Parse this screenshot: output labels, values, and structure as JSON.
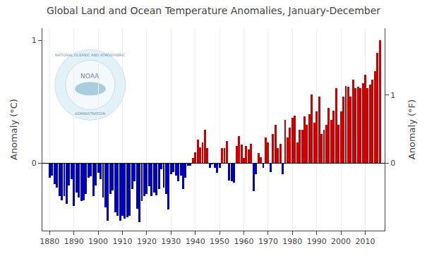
{
  "chart_data": {
    "type": "bar",
    "title": "Global Land and Ocean Temperature Anomalies, January-December",
    "ylabel": "Anomaly (°C)",
    "y2label": "Anomaly (°F)",
    "x": [
      1880,
      1881,
      1882,
      1883,
      1884,
      1885,
      1886,
      1887,
      1888,
      1889,
      1890,
      1891,
      1892,
      1893,
      1894,
      1895,
      1896,
      1897,
      1898,
      1899,
      1900,
      1901,
      1902,
      1903,
      1904,
      1905,
      1906,
      1907,
      1908,
      1909,
      1910,
      1911,
      1912,
      1913,
      1914,
      1915,
      1916,
      1917,
      1918,
      1919,
      1920,
      1921,
      1922,
      1923,
      1924,
      1925,
      1926,
      1927,
      1928,
      1929,
      1930,
      1931,
      1932,
      1933,
      1934,
      1935,
      1936,
      1937,
      1938,
      1939,
      1940,
      1941,
      1942,
      1943,
      1944,
      1945,
      1946,
      1947,
      1948,
      1949,
      1950,
      1951,
      1952,
      1953,
      1954,
      1955,
      1956,
      1957,
      1958,
      1959,
      1960,
      1961,
      1962,
      1963,
      1964,
      1965,
      1966,
      1967,
      1968,
      1969,
      1970,
      1971,
      1972,
      1973,
      1974,
      1975,
      1976,
      1977,
      1978,
      1979,
      1980,
      1981,
      1982,
      1983,
      1984,
      1985,
      1986,
      1987,
      1988,
      1989,
      1990,
      1991,
      1992,
      1993,
      1994,
      1995,
      1996,
      1997,
      1998,
      1999,
      2000,
      2001,
      2002,
      2003,
      2004,
      2005,
      2006,
      2007,
      2008,
      2009,
      2010,
      2011,
      2012,
      2013,
      2014,
      2015,
      2016
    ],
    "values": [
      -0.12,
      -0.1,
      -0.17,
      -0.2,
      -0.27,
      -0.3,
      -0.27,
      -0.33,
      -0.18,
      -0.13,
      -0.35,
      -0.24,
      -0.28,
      -0.31,
      -0.3,
      -0.25,
      -0.12,
      -0.11,
      -0.27,
      -0.18,
      -0.08,
      -0.13,
      -0.28,
      -0.36,
      -0.47,
      -0.25,
      -0.22,
      -0.4,
      -0.43,
      -0.47,
      -0.43,
      -0.45,
      -0.44,
      -0.43,
      -0.21,
      -0.15,
      -0.37,
      -0.48,
      -0.31,
      -0.27,
      -0.25,
      -0.19,
      -0.27,
      -0.24,
      -0.26,
      -0.21,
      -0.05,
      -0.2,
      -0.25,
      -0.38,
      -0.09,
      -0.07,
      -0.1,
      -0.15,
      -0.1,
      -0.21,
      -0.12,
      -0.02,
      -0.02,
      0.04,
      0.09,
      0.19,
      0.13,
      0.17,
      0.27,
      0.12,
      -0.04,
      -0.01,
      -0.04,
      -0.08,
      -0.04,
      0.12,
      0.12,
      0.18,
      -0.14,
      -0.15,
      -0.16,
      0.14,
      0.22,
      0.15,
      0.04,
      0.14,
      0.11,
      0.16,
      -0.23,
      -0.09,
      0.08,
      0.05,
      -0.04,
      0.21,
      0.17,
      -0.07,
      0.24,
      0.31,
      0.12,
      0.16,
      -0.09,
      0.35,
      0.21,
      0.29,
      0.37,
      0.39,
      0.17,
      0.27,
      0.27,
      0.38,
      0.31,
      0.4,
      0.56,
      0.33,
      0.42,
      0.54,
      0.24,
      0.27,
      0.31,
      0.45,
      0.35,
      0.43,
      0.61,
      0.31,
      0.42,
      0.54,
      0.63,
      0.62,
      0.54,
      0.68,
      0.61,
      0.62,
      0.61,
      0.65,
      0.72,
      0.61,
      0.64,
      0.68,
      0.75,
      0.9,
      1.0
    ],
    "colors": [
      "#0000BB",
      "#0000BB",
      "#0000BB",
      "#0000BB",
      "#0000BB",
      "#0000BB",
      "#0000BB",
      "#0000BB",
      "#0000BB",
      "#0000BB",
      "#0000BB",
      "#0000BB",
      "#0000BB",
      "#0000BB",
      "#0000BB",
      "#0000BB",
      "#0000BB",
      "#0000BB",
      "#0000BB",
      "#0000BB",
      "#0000BB",
      "#0000BB",
      "#0000BB",
      "#0000BB",
      "#0000BB",
      "#0000BB",
      "#0000BB",
      "#0000BB",
      "#0000BB",
      "#0000BB",
      "#0000BB",
      "#0000BB",
      "#0000BB",
      "#0000BB",
      "#0000BB",
      "#0000BB",
      "#0000BB",
      "#0000BB",
      "#0000BB",
      "#0000BB",
      "#0000BB",
      "#0000BB",
      "#0000BB",
      "#0000BB",
      "#0000BB",
      "#0000BB",
      "#0000BB",
      "#0000BB",
      "#0000BB",
      "#0000BB",
      "#0000BB",
      "#0000BB",
      "#0000BB",
      "#0000BB",
      "#0000BB",
      "#0000BB",
      "#0000BB",
      "#0000BB",
      "#0000BB",
      "#CC0000",
      "#CC0000",
      "#CC0000",
      "#CC0000",
      "#CC0000",
      "#CC0000",
      "#CC0000",
      "#0000BB",
      "#0000BB",
      "#0000BB",
      "#0000BB",
      "#0000BB",
      "#CC0000",
      "#CC0000",
      "#CC0000",
      "#0000BB",
      "#0000BB",
      "#0000BB",
      "#CC0000",
      "#CC0000",
      "#CC0000",
      "#CC0000",
      "#CC0000",
      "#CC0000",
      "#CC0000",
      "#0000BB",
      "#0000BB",
      "#CC0000",
      "#CC0000",
      "#0000BB",
      "#CC0000",
      "#CC0000",
      "#0000BB",
      "#CC0000",
      "#CC0000",
      "#CC0000",
      "#CC0000",
      "#0000BB",
      "#CC0000",
      "#CC0000",
      "#CC0000",
      "#CC0000",
      "#CC0000",
      "#CC0000",
      "#CC0000",
      "#CC0000",
      "#CC0000",
      "#CC0000",
      "#CC0000",
      "#CC0000",
      "#CC0000",
      "#CC0000",
      "#CC0000",
      "#CC0000",
      "#CC0000",
      "#CC0000",
      "#CC0000",
      "#CC0000",
      "#CC0000",
      "#CC0000",
      "#CC0000",
      "#CC0000",
      "#CC0000",
      "#CC0000",
      "#CC0000",
      "#CC0000",
      "#CC0000",
      "#CC0000",
      "#CC0000",
      "#CC0000",
      "#CC0000",
      "#CC0000",
      "#CC0000",
      "#CC0000",
      "#CC0000",
      "#CC0000",
      "#CC0000",
      "#CC0000"
    ],
    "xlim": [
      1877,
      2018
    ],
    "xticks": [
      1880,
      1890,
      1900,
      1910,
      1920,
      1930,
      1940,
      1950,
      1960,
      1970,
      1980,
      1990,
      2000,
      2010
    ],
    "ylim": [
      -0.55,
      1.1
    ],
    "yticks": [
      0,
      1
    ],
    "y2lim": [
      -0.99,
      1.98
    ],
    "y2ticks": [
      0,
      1
    ],
    "grid": "x",
    "annotations": [
      "NATIONAL OCEANIC AND ATMOSPHERIC",
      "NOAA",
      "ADMINISTRATION"
    ]
  }
}
